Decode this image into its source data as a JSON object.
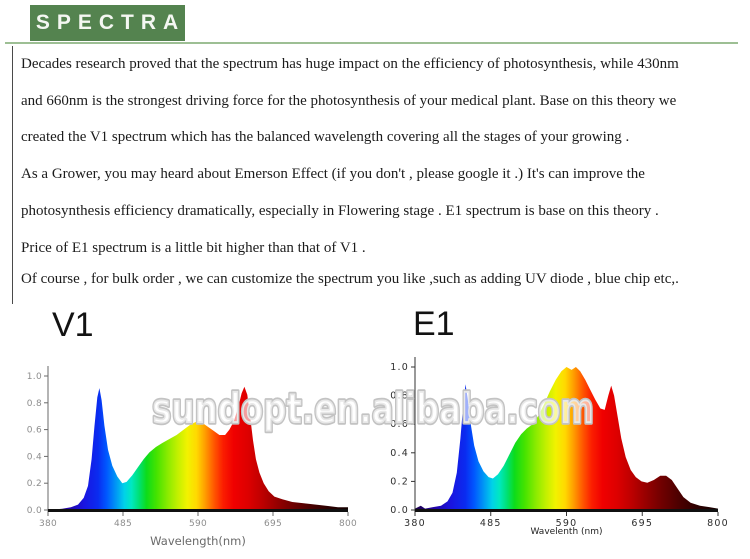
{
  "header": {
    "title": "SPECTRA"
  },
  "colors": {
    "brand_green": "#54834f",
    "rule_green": "#9dbf94"
  },
  "paragraphs": [
    {
      "lines": [
        "Decades research proved that the spectrum has huge impact on the efficiency of photosynthesis, while 430nm",
        "and 660nm is the strongest driving force for the photosynthesis of your medical plant. Base on this theory we",
        "created the V1 spectrum which has the balanced wavelength covering all the stages of your growing ."
      ]
    },
    {
      "lines": [
        "As a Grower, you may heard about Emerson Effect (if you don't , please google it .) It's can improve the",
        "photosynthesis efficiency dramatically, especially in Flowering stage . E1 spectrum is base on this theory .",
        "Price of E1 spectrum is a little bit higher than that of V1 ."
      ]
    },
    {
      "lines": [
        "Of course , for bulk order , we can customize the spectrum you like ,such as adding UV diode , blue chip etc,."
      ]
    }
  ],
  "watermark": {
    "text": "sundopt.en.alibaba.com"
  },
  "chart_data": [
    {
      "type": "area",
      "title": "V1",
      "xlabel": "Wavelength(nm)",
      "ylabel": "",
      "xlim": [
        380,
        800
      ],
      "ylim": [
        0,
        1.05
      ],
      "x_ticks": [
        380,
        485,
        590,
        695,
        800
      ],
      "y_ticks": [
        0,
        0.2,
        0.4,
        0.6,
        0.8,
        1
      ],
      "legend": "none",
      "grid": false,
      "points": [
        [
          380,
          0.0
        ],
        [
          400,
          0.01
        ],
        [
          412,
          0.02
        ],
        [
          422,
          0.04
        ],
        [
          430,
          0.09
        ],
        [
          436,
          0.18
        ],
        [
          441,
          0.38
        ],
        [
          445,
          0.62
        ],
        [
          449,
          0.84
        ],
        [
          452,
          0.91
        ],
        [
          455,
          0.82
        ],
        [
          459,
          0.63
        ],
        [
          464,
          0.45
        ],
        [
          470,
          0.33
        ],
        [
          477,
          0.25
        ],
        [
          484,
          0.2
        ],
        [
          490,
          0.21
        ],
        [
          498,
          0.26
        ],
        [
          506,
          0.32
        ],
        [
          514,
          0.38
        ],
        [
          522,
          0.43
        ],
        [
          531,
          0.47
        ],
        [
          540,
          0.5
        ],
        [
          550,
          0.53
        ],
        [
          560,
          0.56
        ],
        [
          570,
          0.6
        ],
        [
          580,
          0.64
        ],
        [
          588,
          0.66
        ],
        [
          596,
          0.65
        ],
        [
          604,
          0.62
        ],
        [
          612,
          0.59
        ],
        [
          620,
          0.56
        ],
        [
          628,
          0.56
        ],
        [
          634,
          0.6
        ],
        [
          640,
          0.66
        ],
        [
          646,
          0.76
        ],
        [
          651,
          0.87
        ],
        [
          655,
          0.92
        ],
        [
          659,
          0.86
        ],
        [
          663,
          0.7
        ],
        [
          667,
          0.52
        ],
        [
          671,
          0.38
        ],
        [
          676,
          0.28
        ],
        [
          682,
          0.2
        ],
        [
          689,
          0.14
        ],
        [
          697,
          0.1
        ],
        [
          708,
          0.08
        ],
        [
          722,
          0.06
        ],
        [
          738,
          0.05
        ],
        [
          755,
          0.04
        ],
        [
          772,
          0.03
        ],
        [
          786,
          0.02
        ],
        [
          800,
          0.02
        ]
      ]
    },
    {
      "type": "area",
      "title": "E1",
      "xlabel": "Wavelenth (nm)",
      "ylabel": "",
      "xlim": [
        380,
        800
      ],
      "ylim": [
        0,
        1.05
      ],
      "x_ticks": [
        380,
        485,
        590,
        695,
        800
      ],
      "y_ticks": [
        0,
        0.2,
        0.4,
        0.6,
        0.8,
        1
      ],
      "legend": "none",
      "grid": false,
      "points": [
        [
          380,
          0.01
        ],
        [
          388,
          0.03
        ],
        [
          394,
          0.01
        ],
        [
          405,
          0.02
        ],
        [
          416,
          0.03
        ],
        [
          425,
          0.06
        ],
        [
          432,
          0.12
        ],
        [
          438,
          0.26
        ],
        [
          443,
          0.5
        ],
        [
          447,
          0.74
        ],
        [
          450,
          0.88
        ],
        [
          453,
          0.78
        ],
        [
          457,
          0.61
        ],
        [
          462,
          0.45
        ],
        [
          468,
          0.34
        ],
        [
          475,
          0.27
        ],
        [
          482,
          0.23
        ],
        [
          488,
          0.22
        ],
        [
          495,
          0.25
        ],
        [
          503,
          0.31
        ],
        [
          511,
          0.39
        ],
        [
          519,
          0.47
        ],
        [
          527,
          0.53
        ],
        [
          535,
          0.57
        ],
        [
          543,
          0.6
        ],
        [
          551,
          0.66
        ],
        [
          559,
          0.74
        ],
        [
          567,
          0.83
        ],
        [
          575,
          0.91
        ],
        [
          583,
          0.97
        ],
        [
          590,
          1.0
        ],
        [
          597,
          0.98
        ],
        [
          603,
          1.0
        ],
        [
          609,
          0.97
        ],
        [
          616,
          0.91
        ],
        [
          623,
          0.84
        ],
        [
          630,
          0.77
        ],
        [
          637,
          0.71
        ],
        [
          643,
          0.7
        ],
        [
          648,
          0.8
        ],
        [
          652,
          0.87
        ],
        [
          656,
          0.8
        ],
        [
          661,
          0.65
        ],
        [
          666,
          0.5
        ],
        [
          672,
          0.37
        ],
        [
          679,
          0.28
        ],
        [
          686,
          0.23
        ],
        [
          694,
          0.2
        ],
        [
          702,
          0.19
        ],
        [
          711,
          0.21
        ],
        [
          720,
          0.24
        ],
        [
          728,
          0.24
        ],
        [
          736,
          0.21
        ],
        [
          744,
          0.15
        ],
        [
          752,
          0.09
        ],
        [
          762,
          0.05
        ],
        [
          775,
          0.03
        ],
        [
          788,
          0.02
        ],
        [
          800,
          0.01
        ]
      ]
    }
  ],
  "spectrum_gradient": [
    {
      "wl": 380,
      "color": "#1b0142"
    },
    {
      "wl": 405,
      "color": "#2302a0"
    },
    {
      "wl": 430,
      "color": "#1a14e0"
    },
    {
      "wl": 450,
      "color": "#0a2cf0"
    },
    {
      "wl": 462,
      "color": "#0057ff"
    },
    {
      "wl": 475,
      "color": "#0096f5"
    },
    {
      "wl": 487,
      "color": "#00d2e8"
    },
    {
      "wl": 497,
      "color": "#00e8c0"
    },
    {
      "wl": 508,
      "color": "#00e070"
    },
    {
      "wl": 518,
      "color": "#0ddc1a"
    },
    {
      "wl": 532,
      "color": "#45e300"
    },
    {
      "wl": 548,
      "color": "#8ceb00"
    },
    {
      "wl": 562,
      "color": "#c4f000"
    },
    {
      "wl": 575,
      "color": "#f2f200"
    },
    {
      "wl": 588,
      "color": "#ffd900"
    },
    {
      "wl": 600,
      "color": "#ff9d00"
    },
    {
      "wl": 612,
      "color": "#ff5a00"
    },
    {
      "wl": 625,
      "color": "#fb1e00"
    },
    {
      "wl": 640,
      "color": "#f00000"
    },
    {
      "wl": 660,
      "color": "#dd0000"
    },
    {
      "wl": 680,
      "color": "#bd0000"
    },
    {
      "wl": 700,
      "color": "#970000"
    },
    {
      "wl": 722,
      "color": "#700000"
    },
    {
      "wl": 745,
      "color": "#4d0000"
    },
    {
      "wl": 770,
      "color": "#2d0000"
    },
    {
      "wl": 800,
      "color": "#140000"
    }
  ]
}
